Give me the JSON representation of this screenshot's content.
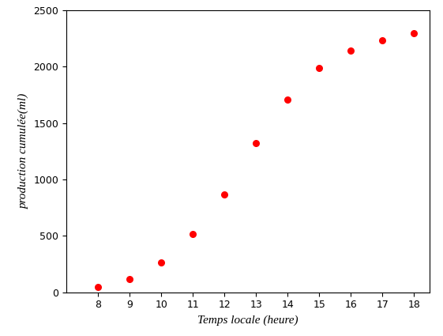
{
  "chart_data": {
    "type": "scatter",
    "x_label": "Temps locale (heure)",
    "y_label": "production cumulée(ml)",
    "x": [
      8,
      9,
      10,
      11,
      12,
      13,
      14,
      15,
      16,
      17,
      18
    ],
    "values": [
      50,
      115,
      265,
      515,
      865,
      1320,
      1710,
      1990,
      2140,
      2230,
      2295
    ],
    "color": "#ff0000",
    "marker": "circle",
    "xlim": [
      7,
      18.5
    ],
    "xticks": [
      8,
      9,
      10,
      11,
      12,
      13,
      14,
      15,
      16,
      17,
      18
    ],
    "ylim": [
      0,
      2500
    ],
    "yticks": [
      0,
      500,
      1000,
      1500,
      2000,
      2500
    ],
    "grid": false
  }
}
